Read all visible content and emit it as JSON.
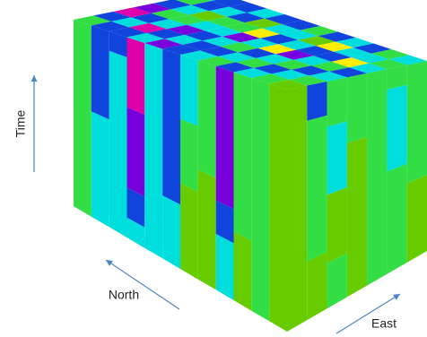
{
  "axes": {
    "time": "Time",
    "north": "North",
    "east": "East"
  }
}
